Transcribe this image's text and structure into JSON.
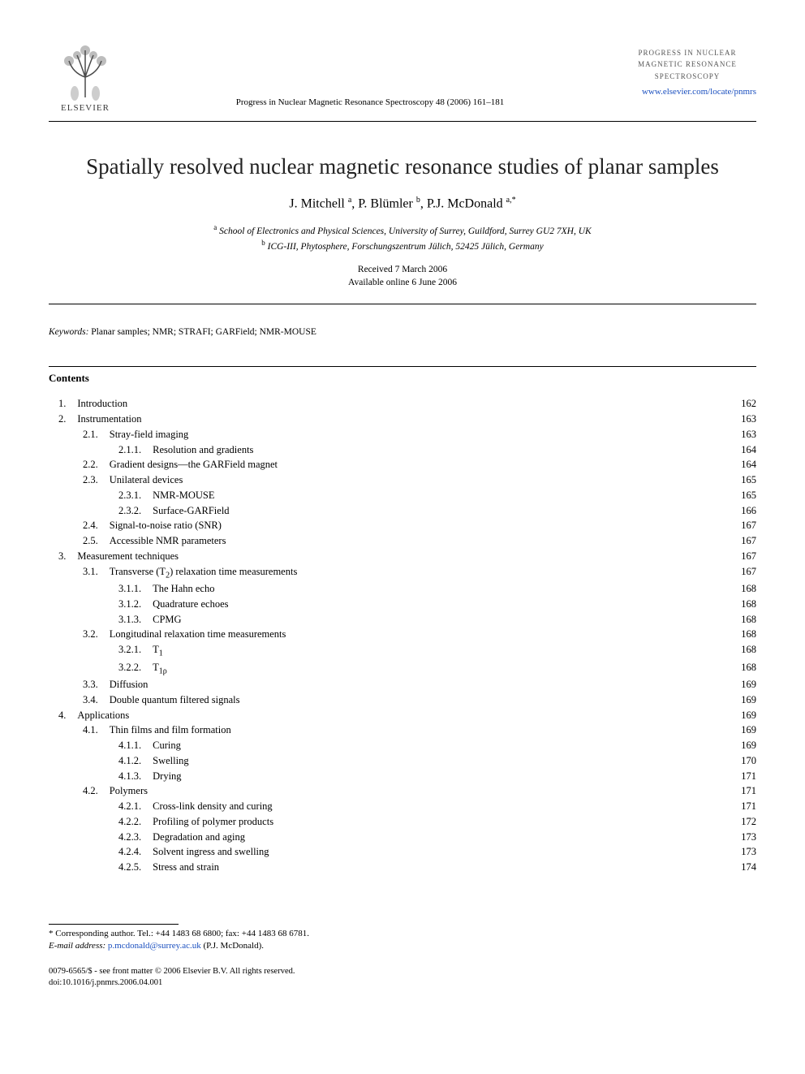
{
  "header": {
    "publisher_name": "ELSEVIER",
    "journal_reference": "Progress in Nuclear Magnetic Resonance Spectroscopy 48 (2006) 161–181",
    "journal_title_lines": [
      "PROGRESS IN NUCLEAR",
      "MAGNETIC RESONANCE",
      "SPECTROSCOPY"
    ],
    "journal_url": "www.elsevier.com/locate/pnmrs"
  },
  "title": "Spatially resolved nuclear magnetic resonance studies of planar samples",
  "authors_html": "J. Mitchell <sup>a</sup>, P. Blümler <sup>b</sup>, P.J. McDonald <sup>a,*</sup>",
  "affiliations": [
    {
      "sup": "a",
      "text": "School of Electronics and Physical Sciences, University of Surrey, Guildford, Surrey GU2 7XH, UK"
    },
    {
      "sup": "b",
      "text": "ICG-III, Phytosphere, Forschungszentrum Jülich, 52425 Jülich, Germany"
    }
  ],
  "dates": {
    "received": "Received 7 March 2006",
    "available": "Available online 6 June 2006"
  },
  "keywords": {
    "label": "Keywords:",
    "text": "Planar samples; NMR; STRAFI; GARField; NMR-MOUSE"
  },
  "contents_heading": "Contents",
  "toc": [
    {
      "level": 0,
      "num": "1.",
      "title": "Introduction",
      "page": "162"
    },
    {
      "level": 0,
      "num": "2.",
      "title": "Instrumentation",
      "page": "163"
    },
    {
      "level": 1,
      "num": "2.1.",
      "title": "Stray-field imaging",
      "page": "163"
    },
    {
      "level": 2,
      "num": "2.1.1.",
      "title": "Resolution and gradients",
      "page": "164"
    },
    {
      "level": 1,
      "num": "2.2.",
      "title": "Gradient designs—the GARField magnet",
      "page": "164"
    },
    {
      "level": 1,
      "num": "2.3.",
      "title": "Unilateral devices",
      "page": "165"
    },
    {
      "level": 2,
      "num": "2.3.1.",
      "title": "NMR-MOUSE",
      "page": "165"
    },
    {
      "level": 2,
      "num": "2.3.2.",
      "title": "Surface-GARField",
      "page": "166"
    },
    {
      "level": 1,
      "num": "2.4.",
      "title": "Signal-to-noise ratio (SNR)",
      "page": "167"
    },
    {
      "level": 1,
      "num": "2.5.",
      "title": "Accessible NMR parameters",
      "page": "167"
    },
    {
      "level": 0,
      "num": "3.",
      "title": "Measurement techniques",
      "page": "167"
    },
    {
      "level": 1,
      "num": "3.1.",
      "title": "Transverse (T₂) relaxation time measurements",
      "page": "167"
    },
    {
      "level": 2,
      "num": "3.1.1.",
      "title": "The Hahn echo",
      "page": "168"
    },
    {
      "level": 2,
      "num": "3.1.2.",
      "title": "Quadrature echoes",
      "page": "168"
    },
    {
      "level": 2,
      "num": "3.1.3.",
      "title": "CPMG",
      "page": "168"
    },
    {
      "level": 1,
      "num": "3.2.",
      "title": "Longitudinal relaxation time measurements",
      "page": "168"
    },
    {
      "level": 2,
      "num": "3.2.1.",
      "title": "T₁",
      "page": "168"
    },
    {
      "level": 2,
      "num": "3.2.2.",
      "title": "T₁ρ",
      "page": "168"
    },
    {
      "level": 1,
      "num": "3.3.",
      "title": "Diffusion",
      "page": "169"
    },
    {
      "level": 1,
      "num": "3.4.",
      "title": "Double quantum filtered signals",
      "page": "169"
    },
    {
      "level": 0,
      "num": "4.",
      "title": "Applications",
      "page": "169"
    },
    {
      "level": 1,
      "num": "4.1.",
      "title": "Thin films and film formation",
      "page": "169"
    },
    {
      "level": 2,
      "num": "4.1.1.",
      "title": "Curing",
      "page": "169"
    },
    {
      "level": 2,
      "num": "4.1.2.",
      "title": "Swelling",
      "page": "170"
    },
    {
      "level": 2,
      "num": "4.1.3.",
      "title": "Drying",
      "page": "171"
    },
    {
      "level": 1,
      "num": "4.2.",
      "title": "Polymers",
      "page": "171"
    },
    {
      "level": 2,
      "num": "4.2.1.",
      "title": "Cross-link density and curing",
      "page": "171"
    },
    {
      "level": 2,
      "num": "4.2.2.",
      "title": "Profiling of polymer products",
      "page": "172"
    },
    {
      "level": 2,
      "num": "4.2.3.",
      "title": "Degradation and aging",
      "page": "173"
    },
    {
      "level": 2,
      "num": "4.2.4.",
      "title": "Solvent ingress and swelling",
      "page": "173"
    },
    {
      "level": 2,
      "num": "4.2.5.",
      "title": "Stress and strain",
      "page": "174"
    }
  ],
  "footnote": {
    "corresponding": "* Corresponding author. Tel.: +44 1483 68 6800; fax: +44 1483 68 6781.",
    "email_label": "E-mail address:",
    "email": "p.mcdonald@surrey.ac.uk",
    "email_suffix": "(P.J. McDonald)."
  },
  "copyright": {
    "line1": "0079-6565/$ - see front matter © 2006 Elsevier B.V. All rights reserved.",
    "line2": "doi:10.1016/j.pnmrs.2006.04.001"
  },
  "colors": {
    "text": "#000000",
    "link": "#1a4fbf",
    "background": "#ffffff"
  }
}
